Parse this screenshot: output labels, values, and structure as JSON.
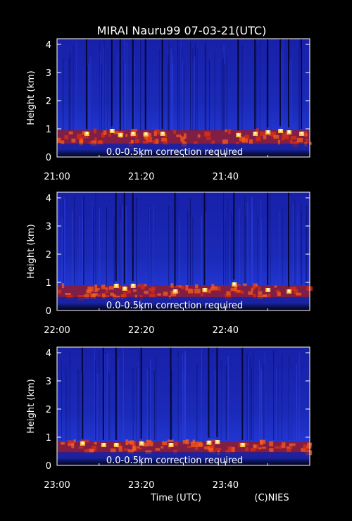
{
  "figure": {
    "title": "MIRAI Nauru99 07-03-21(UTC)",
    "x_axis_label": "Time (UTC)",
    "credit": "(C)NIES"
  },
  "chart_data": [
    {
      "type": "heatmap",
      "title": "MIRAI Nauru99 07-03-21(UTC)",
      "xlabel": "",
      "ylabel": "Height (km)",
      "xlim_minutes_utc": [
        "21:00",
        "22:00"
      ],
      "ylim": [
        0,
        4.2
      ],
      "x_ticks": [
        "21:00",
        "21:20",
        "21:40"
      ],
      "y_ticks": [
        0,
        1,
        2,
        3,
        4
      ],
      "annotation": "0.0-0.5km correction required",
      "cloud_layer_km": [
        0.45,
        0.95
      ],
      "cloud_tops": [
        {
          "time": "21:07",
          "height_km": 0.9
        },
        {
          "time": "21:13",
          "height_km": 1.0
        },
        {
          "time": "21:15",
          "height_km": 0.85
        },
        {
          "time": "21:18",
          "height_km": 0.9
        },
        {
          "time": "21:21",
          "height_km": 0.88
        },
        {
          "time": "21:25",
          "height_km": 0.9
        },
        {
          "time": "21:43",
          "height_km": 0.85
        },
        {
          "time": "21:47",
          "height_km": 0.9
        },
        {
          "time": "21:50",
          "height_km": 0.95
        },
        {
          "time": "21:53",
          "height_km": 1.0
        },
        {
          "time": "21:55",
          "height_km": 0.95
        },
        {
          "time": "21:58",
          "height_km": 0.9
        }
      ]
    },
    {
      "type": "heatmap",
      "title": "",
      "xlabel": "",
      "ylabel": "Height (km)",
      "xlim_minutes_utc": [
        "22:00",
        "23:00"
      ],
      "ylim": [
        0,
        4.2
      ],
      "x_ticks": [
        "22:00",
        "22:20",
        "22:40"
      ],
      "y_ticks": [
        0,
        1,
        2,
        3,
        4
      ],
      "annotation": "0.0-0.5km correction required",
      "cloud_layer_km": [
        0.45,
        0.9
      ],
      "cloud_tops": [
        {
          "time": "22:14",
          "height_km": 0.95
        },
        {
          "time": "22:16",
          "height_km": 0.85
        },
        {
          "time": "22:18",
          "height_km": 0.95
        },
        {
          "time": "22:28",
          "height_km": 0.75
        },
        {
          "time": "22:35",
          "height_km": 0.8
        },
        {
          "time": "22:42",
          "height_km": 1.0
        },
        {
          "time": "22:50",
          "height_km": 0.8
        },
        {
          "time": "22:55",
          "height_km": 0.75
        }
      ]
    },
    {
      "type": "heatmap",
      "title": "",
      "xlabel": "Time (UTC)",
      "ylabel": "Height (km)",
      "xlim_minutes_utc": [
        "23:00",
        "24:00"
      ],
      "ylim": [
        0,
        4.2
      ],
      "x_ticks": [
        "23:00",
        "23:20",
        "23:40"
      ],
      "y_ticks": [
        0,
        1,
        2,
        3,
        4
      ],
      "annotation": "0.0-0.5km correction required",
      "cloud_layer_km": [
        0.45,
        0.85
      ],
      "cloud_tops": [
        {
          "time": "23:06",
          "height_km": 0.85
        },
        {
          "time": "23:11",
          "height_km": 0.8
        },
        {
          "time": "23:14",
          "height_km": 0.8
        },
        {
          "time": "23:20",
          "height_km": 0.85
        },
        {
          "time": "23:27",
          "height_km": 0.8
        },
        {
          "time": "23:36",
          "height_km": 0.88
        },
        {
          "time": "23:38",
          "height_km": 0.9
        },
        {
          "time": "23:44",
          "height_km": 0.8
        }
      ]
    }
  ],
  "colors": {
    "background": "#000000",
    "signal_low": "#1a2cc8",
    "signal_mid": "#c21a1a",
    "signal_high": "#fff4c0",
    "text": "#ffffff"
  }
}
